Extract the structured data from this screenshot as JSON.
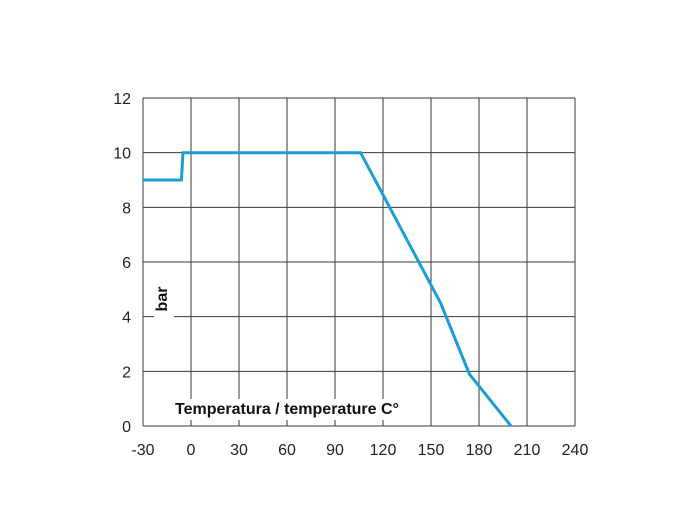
{
  "chart_data": {
    "type": "line",
    "xlabel": "Temperatura / temperature C°",
    "ylabel": "bar",
    "xlim": [
      -30,
      240
    ],
    "ylim": [
      0,
      12
    ],
    "x_ticks": [
      -30,
      0,
      30,
      60,
      90,
      120,
      150,
      180,
      210,
      240
    ],
    "y_ticks": [
      0,
      2,
      4,
      6,
      8,
      10,
      12
    ],
    "grid": true,
    "series": [
      {
        "color": "#1a9ed8",
        "points": [
          [
            -30,
            9
          ],
          [
            -6,
            9
          ],
          [
            -5,
            10
          ],
          [
            106,
            10
          ],
          [
            156,
            4.5
          ],
          [
            174,
            1.9
          ],
          [
            200,
            0
          ]
        ]
      }
    ]
  }
}
